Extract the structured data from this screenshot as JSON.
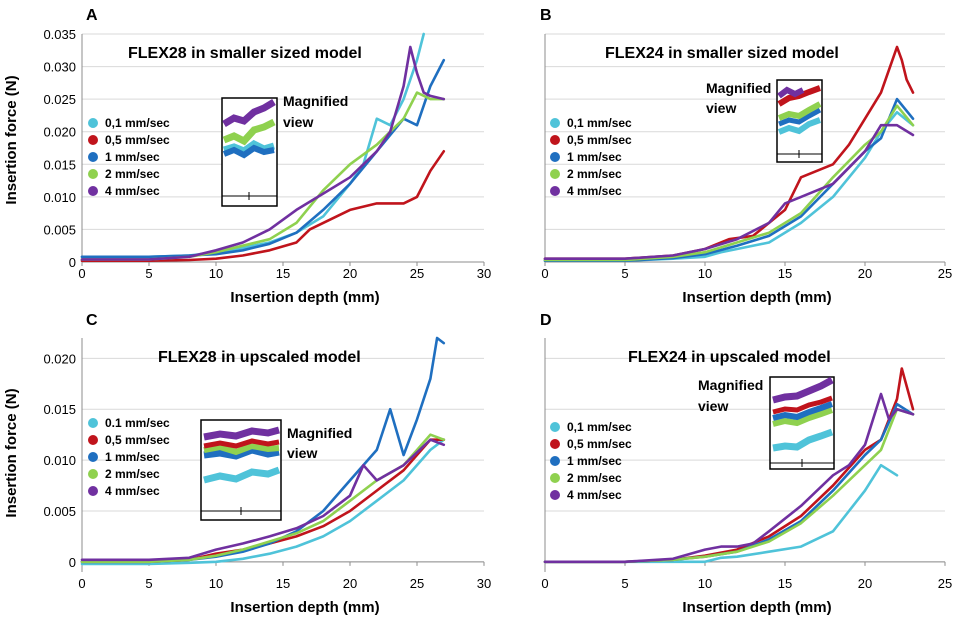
{
  "figure": {
    "y_axis_label": "Insertion force (N)",
    "x_axis_label": "Insertion depth (mm)",
    "magnified_label": [
      "Magnified",
      "view"
    ]
  },
  "colors": {
    "s01": "#4fc3d9",
    "s05": "#c0141c",
    "s1": "#1f6fc0",
    "s2": "#8fd14f",
    "s4": "#7030a0"
  },
  "chart_data": [
    {
      "panel": "A",
      "type": "line",
      "title": "FLEX28 in smaller sized model",
      "xlabel": "Insertion depth (mm)",
      "ylabel": "Insertion force (N)",
      "xlim": [
        0,
        30
      ],
      "ylim": [
        0,
        0.035
      ],
      "xticks": [
        0,
        5,
        10,
        15,
        20,
        25,
        30
      ],
      "yticks": [
        0,
        0.005,
        0.01,
        0.015,
        0.02,
        0.025,
        0.03,
        0.035
      ],
      "ytick_labels": [
        "0",
        "0.005",
        "0.010",
        "0.015",
        "0.020",
        "0.025",
        "0.030",
        "0.035"
      ],
      "grid": "horizontal",
      "legend_position": "left",
      "series": [
        {
          "name": "0,1 mm/sec",
          "color": "#4fc3d9",
          "x": [
            0,
            5,
            8,
            10,
            12,
            14,
            16,
            18,
            20,
            21,
            22,
            22.5,
            23,
            24,
            25,
            25.5
          ],
          "y": [
            0.0008,
            0.0008,
            0.001,
            0.0015,
            0.0022,
            0.003,
            0.0045,
            0.007,
            0.012,
            0.015,
            0.022,
            0.0215,
            0.021,
            0.025,
            0.031,
            0.035
          ]
        },
        {
          "name": "0,5 mm/sec",
          "color": "#c0141c",
          "x": [
            0,
            5,
            8,
            10,
            12,
            14,
            16,
            17,
            18,
            20,
            22,
            24,
            25,
            26,
            27
          ],
          "y": [
            0.0002,
            0.0002,
            0.0003,
            0.0005,
            0.001,
            0.0018,
            0.003,
            0.005,
            0.006,
            0.008,
            0.009,
            0.009,
            0.01,
            0.014,
            0.017
          ]
        },
        {
          "name": "1 mm/sec",
          "color": "#1f6fc0",
          "x": [
            0,
            5,
            8,
            10,
            12,
            14,
            16,
            18,
            20,
            22,
            24,
            25,
            26,
            27
          ],
          "y": [
            0.0008,
            0.0008,
            0.001,
            0.0012,
            0.0018,
            0.0028,
            0.0045,
            0.008,
            0.012,
            0.017,
            0.022,
            0.021,
            0.027,
            0.031
          ]
        },
        {
          "name": "2 mm/sec",
          "color": "#8fd14f",
          "x": [
            0,
            5,
            8,
            10,
            12,
            14,
            16,
            18,
            20,
            22,
            23,
            24,
            25,
            26,
            27
          ],
          "y": [
            0.0004,
            0.0004,
            0.0008,
            0.0015,
            0.0025,
            0.0035,
            0.006,
            0.011,
            0.015,
            0.018,
            0.02,
            0.022,
            0.026,
            0.025,
            0.025
          ]
        },
        {
          "name": "4 mm/sec",
          "color": "#7030a0",
          "x": [
            0,
            5,
            8,
            10,
            12,
            14,
            16,
            18,
            20,
            22,
            23,
            24,
            24.5,
            25,
            25.5,
            26,
            27
          ],
          "y": [
            0.0004,
            0.0004,
            0.0008,
            0.0018,
            0.003,
            0.005,
            0.008,
            0.0105,
            0.013,
            0.017,
            0.02,
            0.027,
            0.033,
            0.029,
            0.026,
            0.0255,
            0.025
          ]
        }
      ]
    },
    {
      "panel": "B",
      "type": "line",
      "title": "FLEX24 in smaller sized model",
      "xlabel": "Insertion depth (mm)",
      "ylabel": "Insertion force (N)",
      "xlim": [
        0,
        25
      ],
      "ylim": [
        0,
        0.035
      ],
      "xticks": [
        0,
        5,
        10,
        15,
        20,
        25
      ],
      "yticks": [
        0,
        0.005,
        0.01,
        0.015,
        0.02,
        0.025,
        0.03,
        0.035
      ],
      "ytick_labels": [],
      "grid": "horizontal",
      "legend_position": "left",
      "series": [
        {
          "name": "0,1 mm/sec",
          "color": "#4fc3d9",
          "x": [
            0,
            5,
            8,
            10,
            11,
            12,
            14,
            16,
            18,
            20,
            21,
            22,
            23
          ],
          "y": [
            0.0002,
            0.0002,
            0.0005,
            0.0008,
            0.0015,
            0.002,
            0.003,
            0.006,
            0.01,
            0.016,
            0.02,
            0.023,
            0.021
          ]
        },
        {
          "name": "0,5 mm/sec",
          "color": "#c0141c",
          "x": [
            0,
            5,
            8,
            10,
            11.5,
            13,
            15,
            16,
            17,
            18,
            19,
            20,
            21,
            22,
            22.3,
            22.6,
            23
          ],
          "y": [
            0.0005,
            0.0005,
            0.001,
            0.002,
            0.0035,
            0.004,
            0.008,
            0.013,
            0.014,
            0.015,
            0.018,
            0.022,
            0.026,
            0.033,
            0.031,
            0.028,
            0.026
          ]
        },
        {
          "name": "1 mm/sec",
          "color": "#1f6fc0",
          "x": [
            0,
            5,
            8,
            10,
            12,
            14,
            16,
            18,
            20,
            21,
            22,
            23
          ],
          "y": [
            0.0002,
            0.0002,
            0.0006,
            0.0012,
            0.0025,
            0.004,
            0.007,
            0.012,
            0.017,
            0.019,
            0.025,
            0.022
          ]
        },
        {
          "name": "2 mm/sec",
          "color": "#8fd14f",
          "x": [
            0,
            5,
            8,
            10,
            12,
            14,
            16,
            18,
            20,
            21,
            22,
            23
          ],
          "y": [
            0.0003,
            0.0003,
            0.0008,
            0.0015,
            0.003,
            0.0045,
            0.0075,
            0.013,
            0.018,
            0.02,
            0.024,
            0.021
          ]
        },
        {
          "name": "4 mm/sec",
          "color": "#7030a0",
          "x": [
            0,
            5,
            8,
            10,
            12,
            14,
            15,
            16,
            18,
            20,
            21,
            22,
            23
          ],
          "y": [
            0.0005,
            0.0005,
            0.001,
            0.002,
            0.0035,
            0.006,
            0.009,
            0.01,
            0.012,
            0.017,
            0.021,
            0.021,
            0.0195
          ]
        }
      ]
    },
    {
      "panel": "C",
      "type": "line",
      "title": "FLEX28 in upscaled model",
      "xlabel": "Insertion depth (mm)",
      "ylabel": "Insertion force (N)",
      "xlim": [
        0,
        30
      ],
      "ylim": [
        -0.001,
        0.022
      ],
      "xticks": [
        0,
        5,
        10,
        15,
        20,
        25,
        30
      ],
      "yticks": [
        0,
        0.005,
        0.01,
        0.015,
        0.02
      ],
      "ytick_labels": [
        "0",
        "0.005",
        "0.010",
        "0.015",
        "0.020"
      ],
      "grid": "horizontal",
      "legend_position": "left",
      "series": [
        {
          "name": "0.1 mm/sec",
          "color": "#4fc3d9",
          "x": [
            0,
            5,
            8,
            10,
            12,
            14,
            16,
            18,
            20,
            22,
            24,
            26,
            27
          ],
          "y": [
            -0.0002,
            -0.0002,
            -0.0001,
            0.0,
            0.0003,
            0.0008,
            0.0015,
            0.0025,
            0.004,
            0.006,
            0.008,
            0.011,
            0.012
          ]
        },
        {
          "name": "0,5 mm/sec",
          "color": "#c0141c",
          "x": [
            0,
            5,
            8,
            10,
            12,
            14,
            16,
            18,
            20,
            22,
            24,
            26,
            27
          ],
          "y": [
            0.0,
            0.0,
            0.0002,
            0.0008,
            0.0012,
            0.0018,
            0.0025,
            0.0035,
            0.005,
            0.007,
            0.009,
            0.012,
            0.012
          ]
        },
        {
          "name": "1 mm/sec",
          "color": "#1f6fc0",
          "x": [
            0,
            5,
            8,
            10,
            12,
            14,
            16,
            18,
            20,
            22,
            23,
            24,
            25,
            26,
            26.5,
            27
          ],
          "y": [
            0.0,
            0.0,
            0.0002,
            0.0005,
            0.001,
            0.0018,
            0.003,
            0.005,
            0.008,
            0.011,
            0.015,
            0.0105,
            0.014,
            0.018,
            0.022,
            0.0215
          ]
        },
        {
          "name": "2 mm/sec",
          "color": "#8fd14f",
          "x": [
            0,
            5,
            8,
            10,
            12,
            14,
            16,
            18,
            20,
            22,
            24,
            26,
            27
          ],
          "y": [
            0.0,
            0.0,
            0.0002,
            0.0006,
            0.0012,
            0.002,
            0.0028,
            0.004,
            0.006,
            0.008,
            0.0095,
            0.0125,
            0.012
          ]
        },
        {
          "name": "4 mm/sec",
          "color": "#7030a0",
          "x": [
            0,
            5,
            8,
            10,
            12,
            14,
            16,
            18,
            20,
            21,
            22,
            24,
            26,
            27
          ],
          "y": [
            0.0002,
            0.0002,
            0.0004,
            0.0012,
            0.0018,
            0.0025,
            0.0033,
            0.0045,
            0.0065,
            0.0095,
            0.008,
            0.0095,
            0.012,
            0.0115
          ]
        }
      ]
    },
    {
      "panel": "D",
      "type": "line",
      "title": "FLEX24 in upscaled model",
      "xlabel": "Insertion depth (mm)",
      "ylabel": "Insertion force (N)",
      "xlim": [
        0,
        25
      ],
      "ylim": [
        -0.001,
        0.022
      ],
      "xticks": [
        0,
        5,
        10,
        15,
        20,
        25
      ],
      "yticks": [
        0,
        0.005,
        0.01,
        0.015,
        0.02
      ],
      "ytick_labels": [],
      "grid": "horizontal",
      "legend_position": "left",
      "series": [
        {
          "name": "0,1 mm/sec",
          "color": "#4fc3d9",
          "x": [
            0,
            5,
            8,
            10,
            11,
            12,
            14,
            16,
            18,
            19,
            20,
            21,
            22
          ],
          "y": [
            0.0,
            0.0,
            0.0,
            0.0,
            0.0004,
            0.0005,
            0.001,
            0.0015,
            0.003,
            0.005,
            0.007,
            0.0095,
            0.0085
          ]
        },
        {
          "name": "0,5 mm/sec",
          "color": "#c0141c",
          "x": [
            0,
            5,
            8,
            10,
            12,
            14,
            16,
            18,
            20,
            21,
            22,
            22.3,
            23
          ],
          "y": [
            0.0,
            0.0,
            0.0002,
            0.0006,
            0.0012,
            0.0025,
            0.0045,
            0.0075,
            0.011,
            0.012,
            0.016,
            0.019,
            0.015
          ]
        },
        {
          "name": "1 mm/sec",
          "color": "#1f6fc0",
          "x": [
            0,
            5,
            8,
            10,
            12,
            14,
            16,
            18,
            20,
            21,
            22,
            23
          ],
          "y": [
            0.0,
            0.0,
            0.0002,
            0.0005,
            0.001,
            0.0022,
            0.004,
            0.007,
            0.0105,
            0.012,
            0.0155,
            0.0145
          ]
        },
        {
          "name": "2 mm/sec",
          "color": "#8fd14f",
          "x": [
            0,
            5,
            8,
            10,
            12,
            14,
            16,
            18,
            20,
            21,
            22,
            23
          ],
          "y": [
            0.0,
            0.0,
            0.0002,
            0.0005,
            0.001,
            0.002,
            0.0038,
            0.0065,
            0.0095,
            0.011,
            0.015,
            0.0145
          ]
        },
        {
          "name": "4 mm/sec",
          "color": "#7030a0",
          "x": [
            0,
            5,
            8,
            10,
            11,
            12,
            13,
            14,
            16,
            18,
            19,
            20,
            21,
            21.5,
            22,
            23
          ],
          "y": [
            0.0,
            0.0,
            0.0003,
            0.0012,
            0.0015,
            0.0015,
            0.0018,
            0.003,
            0.0055,
            0.0085,
            0.0095,
            0.0115,
            0.0165,
            0.014,
            0.015,
            0.0145
          ]
        }
      ]
    }
  ]
}
